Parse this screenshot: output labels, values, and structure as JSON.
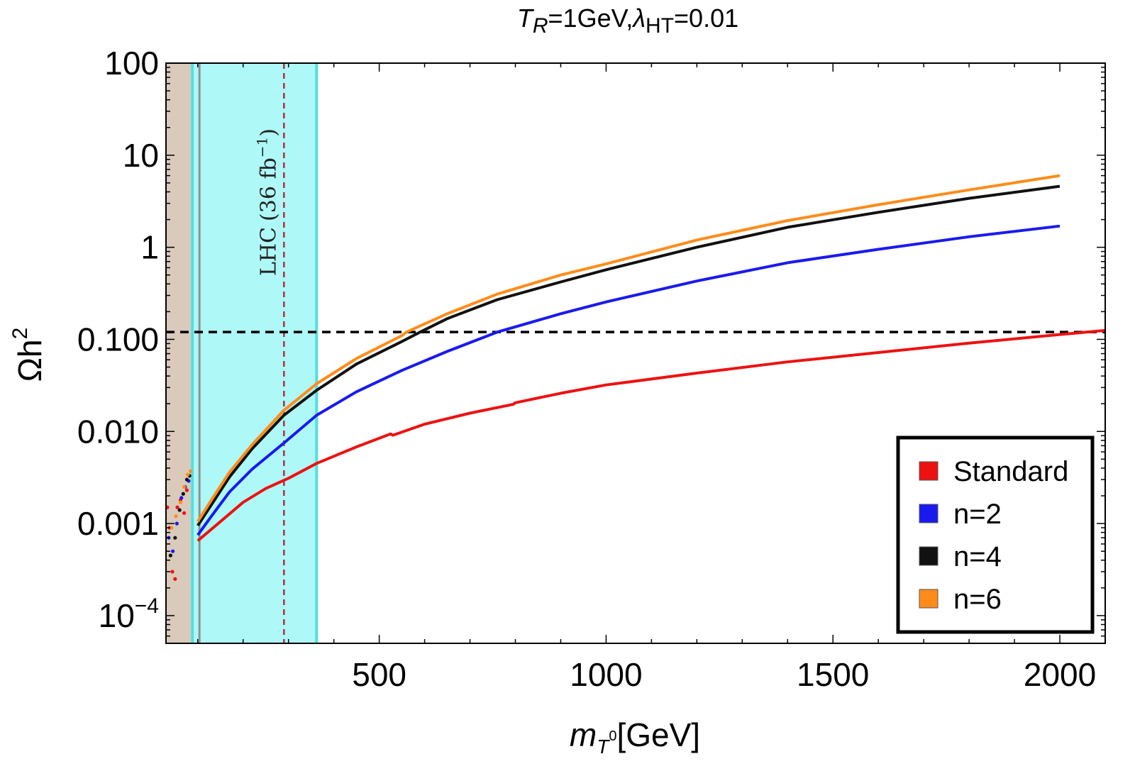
{
  "chart_data": {
    "type": "line",
    "title": {
      "T": "T",
      "R": "R",
      "eq1": "=1GeV,",
      "lambda": "λ",
      "HT": "HT",
      "eq2": "=0.01"
    },
    "xlabel": {
      "m": "m",
      "T": "T",
      "zero": "0",
      "unit": "[GeV]"
    },
    "ylabel": {
      "omega": "Ωh",
      "two": "2"
    },
    "xlim": [
      30,
      2100
    ],
    "ylim": [
      5e-05,
      100
    ],
    "yscale": "log",
    "x_ticks": [
      {
        "value": 500,
        "label": "500"
      },
      {
        "value": 1000,
        "label": "1000"
      },
      {
        "value": 1500,
        "label": "1500"
      },
      {
        "value": 2000,
        "label": "2000"
      }
    ],
    "y_ticks": [
      {
        "value": 100,
        "label": "100"
      },
      {
        "value": 10,
        "label": "10"
      },
      {
        "value": 1,
        "label": "1"
      },
      {
        "value": 0.1,
        "label": "0.100"
      },
      {
        "value": 0.01,
        "label": "0.010"
      },
      {
        "value": 0.001,
        "label": "0.001"
      },
      {
        "value": 0.0001,
        "label": "10",
        "exp": "−4"
      }
    ],
    "bands": [
      {
        "name": "excluded-low-mass",
        "x": [
          30,
          85
        ],
        "color": "#d9cabb"
      },
      {
        "name": "lhc-exclusion",
        "x": [
          85,
          362
        ],
        "color": "#aef8f8"
      }
    ],
    "lhc_label": {
      "text": "LHC",
      "paren_open": "(",
      "value": "36 fb",
      "exp": "−1",
      "paren_close": ")"
    },
    "vline_x": 290,
    "hline_y": 0.12,
    "series": [
      {
        "name": "Standard",
        "color": "#ee1111",
        "points": [
          [
            100,
            0.00065
          ],
          [
            150,
            0.00105
          ],
          [
            200,
            0.0017
          ],
          [
            250,
            0.0024
          ],
          [
            300,
            0.0031
          ],
          [
            362,
            0.0045
          ],
          [
            450,
            0.0068
          ],
          [
            525,
            0.0094
          ],
          [
            530,
            0.0091
          ],
          [
            600,
            0.012
          ],
          [
            700,
            0.0158
          ],
          [
            795,
            0.0197
          ],
          [
            800,
            0.0205
          ],
          [
            900,
            0.026
          ],
          [
            1000,
            0.032
          ],
          [
            1200,
            0.043
          ],
          [
            1400,
            0.057
          ],
          [
            1600,
            0.072
          ],
          [
            1800,
            0.091
          ],
          [
            2000,
            0.113
          ],
          [
            2100,
            0.125
          ]
        ]
      },
      {
        "name": "n=2",
        "color": "#1a1aee",
        "points": [
          [
            100,
            0.00075
          ],
          [
            130,
            0.0012
          ],
          [
            170,
            0.0022
          ],
          [
            220,
            0.0039
          ],
          [
            290,
            0.0075
          ],
          [
            362,
            0.015
          ],
          [
            450,
            0.027
          ],
          [
            550,
            0.046
          ],
          [
            650,
            0.074
          ],
          [
            760,
            0.12
          ],
          [
            900,
            0.19
          ],
          [
            1000,
            0.255
          ],
          [
            1200,
            0.43
          ],
          [
            1400,
            0.68
          ],
          [
            1600,
            0.95
          ],
          [
            1800,
            1.3
          ],
          [
            2000,
            1.7
          ]
        ]
      },
      {
        "name": "n=4",
        "color": "#111111",
        "points": [
          [
            100,
            0.00095
          ],
          [
            130,
            0.0016
          ],
          [
            170,
            0.0032
          ],
          [
            220,
            0.0065
          ],
          [
            290,
            0.015
          ],
          [
            362,
            0.028
          ],
          [
            450,
            0.054
          ],
          [
            550,
            0.095
          ],
          [
            590,
            0.12
          ],
          [
            650,
            0.168
          ],
          [
            760,
            0.27
          ],
          [
            900,
            0.42
          ],
          [
            1000,
            0.57
          ],
          [
            1200,
            1.0
          ],
          [
            1400,
            1.65
          ],
          [
            1600,
            2.4
          ],
          [
            1800,
            3.4
          ],
          [
            2000,
            4.6
          ]
        ]
      },
      {
        "name": "n=6",
        "color": "#ff8c1a",
        "points": [
          [
            100,
            0.00105
          ],
          [
            130,
            0.0018
          ],
          [
            170,
            0.0036
          ],
          [
            220,
            0.0072
          ],
          [
            290,
            0.017
          ],
          [
            362,
            0.033
          ],
          [
            450,
            0.062
          ],
          [
            550,
            0.11
          ],
          [
            560,
            0.12
          ],
          [
            650,
            0.19
          ],
          [
            760,
            0.31
          ],
          [
            900,
            0.5
          ],
          [
            1000,
            0.66
          ],
          [
            1200,
            1.2
          ],
          [
            1400,
            1.95
          ],
          [
            1600,
            2.9
          ],
          [
            1800,
            4.2
          ],
          [
            2000,
            6.0
          ]
        ]
      }
    ],
    "low_mass_scatter": [
      {
        "series": "Standard",
        "points": [
          [
            33,
            0.0015
          ],
          [
            38,
            0.0009
          ],
          [
            44,
            0.0003
          ],
          [
            50,
            0.00025
          ],
          [
            55,
            0.0015
          ],
          [
            62,
            0.0018
          ],
          [
            70,
            0.0013
          ],
          [
            76,
            0.0023
          ]
        ]
      },
      {
        "series": "n=2",
        "points": [
          [
            36,
            0.0007
          ],
          [
            45,
            0.0005
          ],
          [
            54,
            0.001
          ],
          [
            64,
            0.0019
          ],
          [
            72,
            0.0025
          ],
          [
            80,
            0.0029
          ]
        ]
      },
      {
        "series": "n=4",
        "points": [
          [
            40,
            0.00045
          ],
          [
            50,
            0.0007
          ],
          [
            60,
            0.0014
          ],
          [
            68,
            0.0021
          ],
          [
            76,
            0.003
          ],
          [
            82,
            0.0033
          ]
        ]
      },
      {
        "series": "n=6",
        "points": [
          [
            42,
            0.0009
          ],
          [
            52,
            0.0012
          ],
          [
            62,
            0.0017
          ],
          [
            70,
            0.0025
          ],
          [
            78,
            0.0034
          ],
          [
            84,
            0.0037
          ]
        ]
      }
    ],
    "legend": {
      "position": "bottom-right",
      "items": [
        "Standard",
        "n=2",
        "n=4",
        "n=6"
      ]
    }
  }
}
